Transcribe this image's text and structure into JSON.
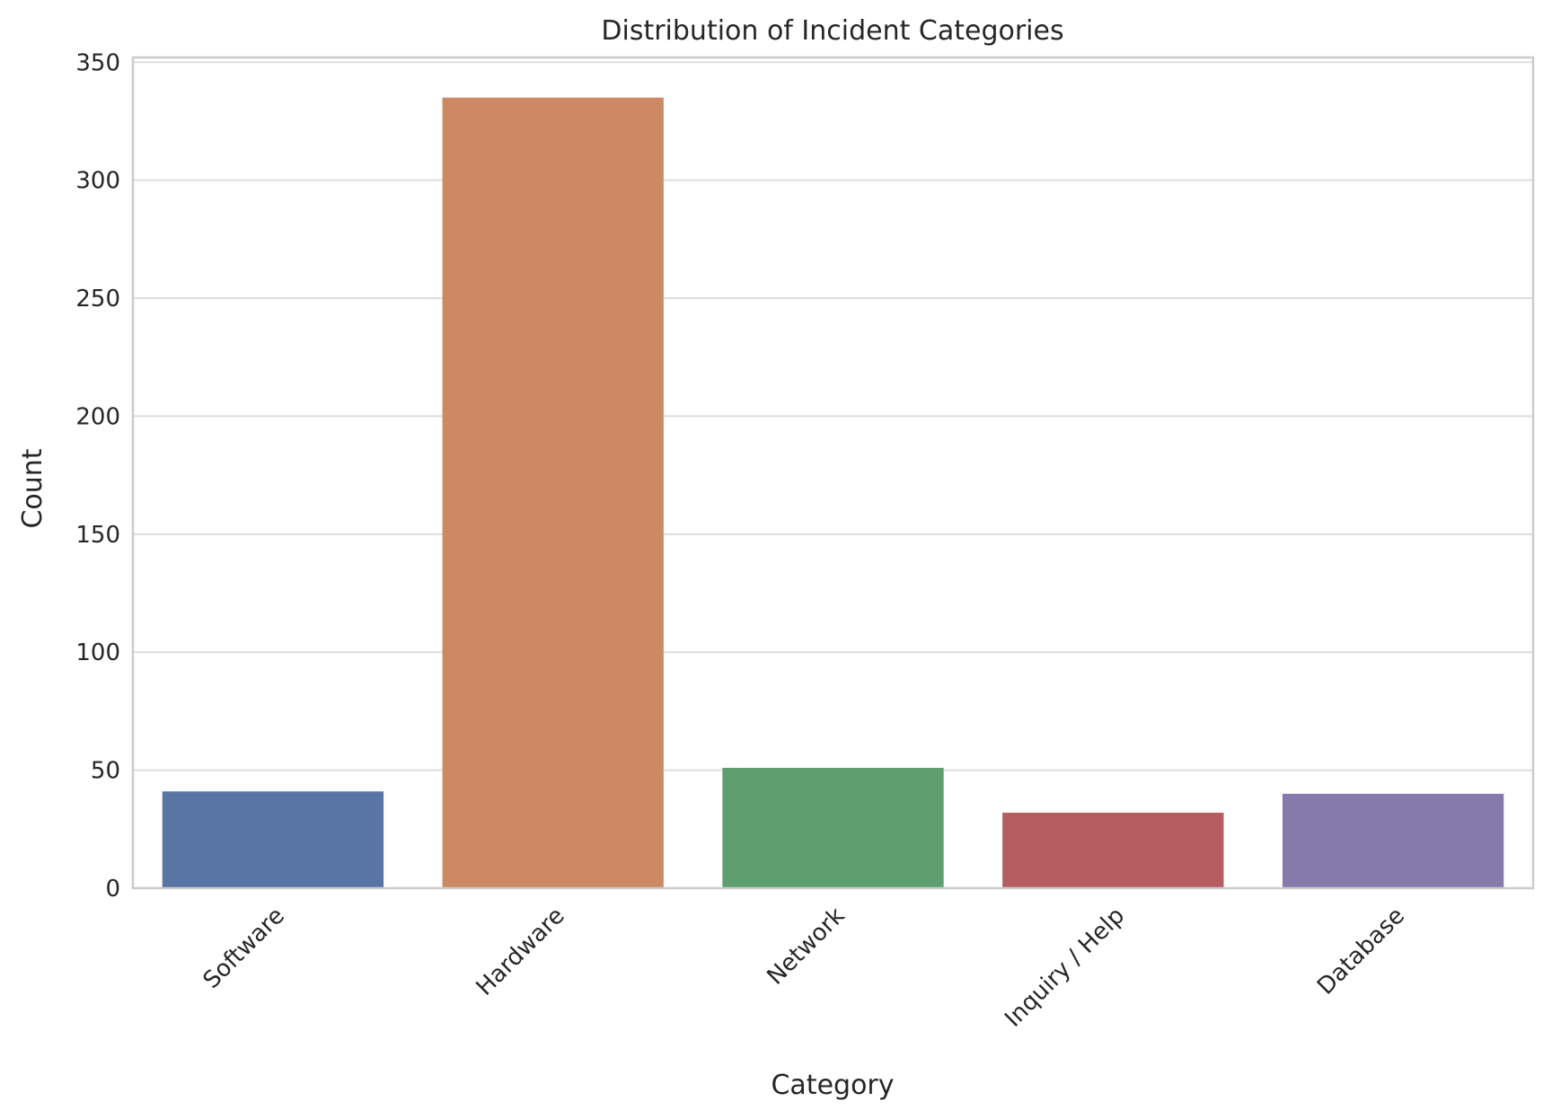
{
  "chart_data": {
    "type": "bar",
    "title": "Distribution of Incident Categories",
    "xlabel": "Category",
    "ylabel": "Count",
    "categories": [
      "Software",
      "Hardware",
      "Network",
      "Inquiry / Help",
      "Database"
    ],
    "values": [
      41,
      335,
      51,
      32,
      40
    ],
    "colors": [
      "#5875a4",
      "#cc8963",
      "#5f9e6e",
      "#b55d60",
      "#857aab"
    ],
    "ylim": [
      0,
      352
    ],
    "yticks": [
      0,
      50,
      100,
      150,
      200,
      250,
      300,
      350
    ],
    "grid": true,
    "grid_axis": "y",
    "legend": "none"
  },
  "style": {
    "grid_color": "#dddddd",
    "spine_color": "#cccccc",
    "text_color": "#262626"
  }
}
